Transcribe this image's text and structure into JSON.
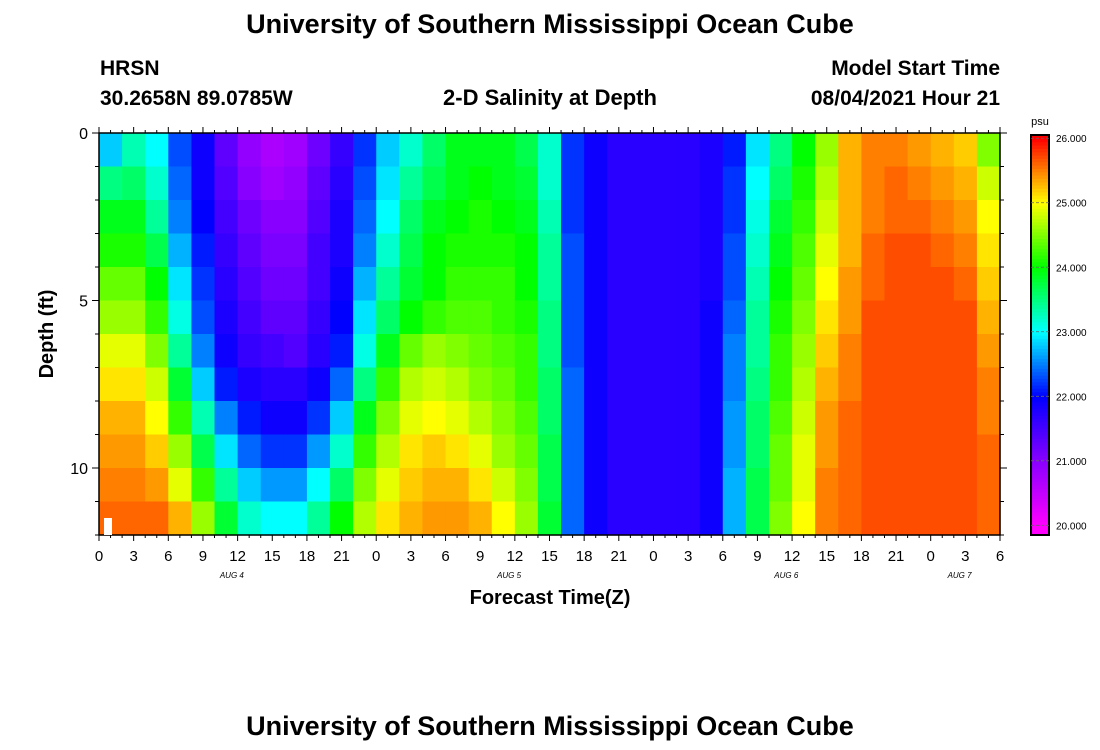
{
  "header": {
    "title": "University of Southern Mississippi Ocean Cube",
    "footer_title": "University of Southern Mississippi Ocean Cube",
    "station": "HRSN",
    "location": "30.2658N  89.0785W",
    "subtitle": "2-D Salinity at Depth",
    "model_label": "Model Start Time",
    "model_time": "08/04/2021 Hour 21"
  },
  "chart_data": {
    "type": "heatmap",
    "title": "2-D Salinity at Depth",
    "xlabel": "Forecast Time(Z)",
    "ylabel": "Depth (ft)",
    "x_unit": "forecast hour",
    "xlim": [
      0,
      78
    ],
    "ylim": [
      12,
      0
    ],
    "y_reversed": true,
    "x_tick_labels": [
      "0",
      "3",
      "6",
      "9",
      "12",
      "15",
      "18",
      "21",
      "0",
      "3",
      "6",
      "9",
      "12",
      "15",
      "18",
      "21",
      "0",
      "3",
      "6",
      "9",
      "12",
      "15",
      "18",
      "21",
      "0",
      "3",
      "6"
    ],
    "y_tick_labels": [
      "0",
      "5",
      "10"
    ],
    "y_tick_values": [
      0,
      5,
      10
    ],
    "date_labels": [
      {
        "text": "AUG 4",
        "hour": 11.5
      },
      {
        "text": "AUG 5",
        "hour": 35.5
      },
      {
        "text": "AUG 6",
        "hour": 59.5
      },
      {
        "text": "AUG 7",
        "hour": 74.5
      }
    ],
    "colorbar": {
      "unit": "psu",
      "min": 19.85,
      "max": 26.05,
      "tick_labels": [
        "20.000",
        "21.000",
        "22.000",
        "23.000",
        "24.000",
        "25.000",
        "26.000"
      ],
      "tick_values": [
        20,
        21,
        22,
        23,
        24,
        25,
        26
      ],
      "colors": [
        "#ff00ff",
        "#8800ff",
        "#0000ff",
        "#00ffff",
        "#00ff00",
        "#ffff00",
        "#ff0000"
      ]
    },
    "grid": false,
    "depths_ft": [
      0,
      1,
      2,
      3,
      4,
      5,
      6,
      7,
      8,
      9,
      10,
      11
    ],
    "time_hours": [
      0,
      2,
      4,
      6,
      8,
      10,
      12,
      14,
      16,
      18,
      20,
      22,
      24,
      26,
      28,
      30,
      32,
      34,
      36,
      38,
      40,
      42,
      44,
      46,
      48,
      50,
      52,
      54,
      56,
      58,
      60,
      62,
      64,
      66,
      68,
      70,
      72,
      74,
      76,
      78
    ],
    "salinity_psu": [
      [
        22.8,
        23.3,
        23.0,
        22.3,
        21.9,
        21.3,
        20.9,
        20.7,
        20.8,
        21.2,
        21.6,
        22.2,
        22.8,
        23.2,
        23.6,
        23.9,
        23.9,
        23.9,
        23.7,
        23.2,
        22.2,
        21.9,
        21.7,
        21.7,
        21.7,
        21.7,
        21.8,
        22.1,
        22.9,
        23.5,
        24.0,
        24.6,
        25.3,
        25.5,
        25.5,
        25.4,
        25.3,
        25.2,
        24.5,
        24.2
      ],
      [
        23.5,
        23.6,
        23.2,
        22.4,
        21.9,
        21.4,
        21.0,
        20.8,
        20.9,
        21.3,
        21.7,
        22.3,
        22.9,
        23.4,
        23.7,
        23.9,
        24.0,
        23.9,
        23.8,
        23.2,
        22.2,
        21.9,
        21.7,
        21.7,
        21.7,
        21.7,
        21.8,
        22.2,
        23.0,
        23.6,
        24.1,
        24.7,
        25.3,
        25.5,
        25.6,
        25.5,
        25.4,
        25.3,
        24.8,
        24.2
      ],
      [
        23.9,
        23.9,
        23.4,
        22.5,
        22.0,
        21.5,
        21.2,
        21.0,
        21.0,
        21.4,
        21.8,
        22.4,
        23.0,
        23.6,
        23.9,
        24.0,
        24.1,
        24.0,
        23.9,
        23.3,
        22.2,
        21.9,
        21.7,
        21.7,
        21.7,
        21.7,
        21.8,
        22.2,
        23.1,
        23.8,
        24.2,
        24.8,
        25.3,
        25.5,
        25.6,
        25.6,
        25.5,
        25.4,
        25.0,
        24.3
      ],
      [
        24.1,
        24.1,
        23.7,
        22.7,
        22.1,
        21.6,
        21.3,
        21.1,
        21.1,
        21.5,
        21.8,
        22.5,
        23.2,
        23.7,
        24.0,
        24.1,
        24.1,
        24.1,
        24.0,
        23.4,
        22.3,
        21.9,
        21.7,
        21.7,
        21.7,
        21.7,
        21.8,
        22.3,
        23.2,
        23.9,
        24.3,
        24.9,
        25.3,
        25.6,
        25.7,
        25.7,
        25.6,
        25.5,
        25.1,
        24.4
      ],
      [
        24.4,
        24.4,
        24.0,
        22.9,
        22.2,
        21.7,
        21.4,
        21.2,
        21.2,
        21.5,
        21.9,
        22.7,
        23.4,
        23.8,
        24.0,
        24.2,
        24.2,
        24.2,
        24.0,
        23.4,
        22.3,
        21.9,
        21.7,
        21.7,
        21.7,
        21.7,
        21.8,
        22.3,
        23.3,
        24.0,
        24.4,
        25.0,
        25.4,
        25.6,
        25.7,
        25.7,
        25.7,
        25.6,
        25.2,
        24.6
      ],
      [
        24.6,
        24.6,
        24.2,
        23.1,
        22.3,
        21.8,
        21.5,
        21.3,
        21.3,
        21.6,
        22.0,
        22.9,
        23.6,
        24.0,
        24.2,
        24.3,
        24.3,
        24.2,
        24.1,
        23.5,
        22.3,
        21.9,
        21.7,
        21.7,
        21.7,
        21.7,
        21.9,
        22.4,
        23.4,
        24.1,
        24.5,
        25.1,
        25.4,
        25.7,
        25.7,
        25.7,
        25.7,
        25.7,
        25.3,
        24.7
      ],
      [
        24.9,
        24.9,
        24.5,
        23.4,
        22.5,
        21.9,
        21.6,
        21.5,
        21.4,
        21.7,
        22.1,
        23.1,
        23.9,
        24.4,
        24.6,
        24.5,
        24.4,
        24.3,
        24.2,
        23.5,
        22.3,
        21.9,
        21.7,
        21.7,
        21.7,
        21.7,
        21.9,
        22.5,
        23.4,
        24.2,
        24.6,
        25.2,
        25.5,
        25.7,
        25.7,
        25.7,
        25.7,
        25.7,
        25.4,
        24.8
      ],
      [
        25.1,
        25.1,
        24.8,
        23.8,
        22.8,
        22.1,
        21.8,
        21.7,
        21.7,
        21.9,
        22.4,
        23.5,
        24.2,
        24.7,
        24.8,
        24.7,
        24.5,
        24.4,
        24.2,
        23.6,
        22.4,
        21.9,
        21.7,
        21.7,
        21.7,
        21.7,
        21.9,
        22.5,
        23.5,
        24.2,
        24.7,
        25.3,
        25.5,
        25.7,
        25.7,
        25.7,
        25.7,
        25.7,
        25.5,
        24.9
      ],
      [
        25.3,
        25.3,
        25.0,
        24.2,
        23.3,
        22.5,
        22.1,
        21.9,
        21.9,
        22.2,
        22.8,
        23.9,
        24.5,
        24.9,
        25.0,
        24.9,
        24.7,
        24.5,
        24.3,
        23.6,
        22.4,
        21.9,
        21.7,
        21.7,
        21.7,
        21.7,
        21.9,
        22.6,
        23.6,
        24.3,
        24.8,
        25.4,
        25.6,
        25.7,
        25.7,
        25.7,
        25.7,
        25.7,
        25.5,
        25.0
      ],
      [
        25.4,
        25.4,
        25.2,
        24.6,
        23.7,
        22.9,
        22.4,
        22.2,
        22.2,
        22.6,
        23.2,
        24.2,
        24.7,
        25.1,
        25.2,
        25.1,
        24.9,
        24.6,
        24.4,
        23.7,
        22.4,
        21.9,
        21.7,
        21.7,
        21.7,
        21.7,
        21.9,
        22.6,
        23.6,
        24.4,
        24.9,
        25.4,
        25.6,
        25.7,
        25.7,
        25.7,
        25.7,
        25.7,
        25.6,
        25.1
      ],
      [
        25.5,
        25.5,
        25.4,
        24.9,
        24.2,
        23.4,
        22.8,
        22.6,
        22.6,
        23.0,
        23.6,
        24.5,
        24.9,
        25.2,
        25.3,
        25.3,
        25.1,
        24.8,
        24.5,
        23.7,
        22.4,
        21.9,
        21.7,
        21.7,
        21.7,
        21.7,
        21.9,
        22.7,
        23.7,
        24.4,
        24.9,
        25.5,
        25.6,
        25.7,
        25.7,
        25.7,
        25.7,
        25.7,
        25.6,
        25.2
      ],
      [
        25.6,
        25.6,
        25.6,
        25.3,
        24.6,
        23.8,
        23.2,
        23.0,
        23.0,
        23.4,
        24.0,
        24.7,
        25.1,
        25.3,
        25.4,
        25.4,
        25.3,
        25.0,
        24.6,
        23.8,
        22.4,
        21.9,
        21.7,
        21.7,
        21.7,
        21.7,
        21.9,
        22.7,
        23.7,
        24.5,
        25.0,
        25.5,
        25.6,
        25.7,
        25.7,
        25.7,
        25.7,
        25.7,
        25.6,
        25.3
      ]
    ]
  }
}
